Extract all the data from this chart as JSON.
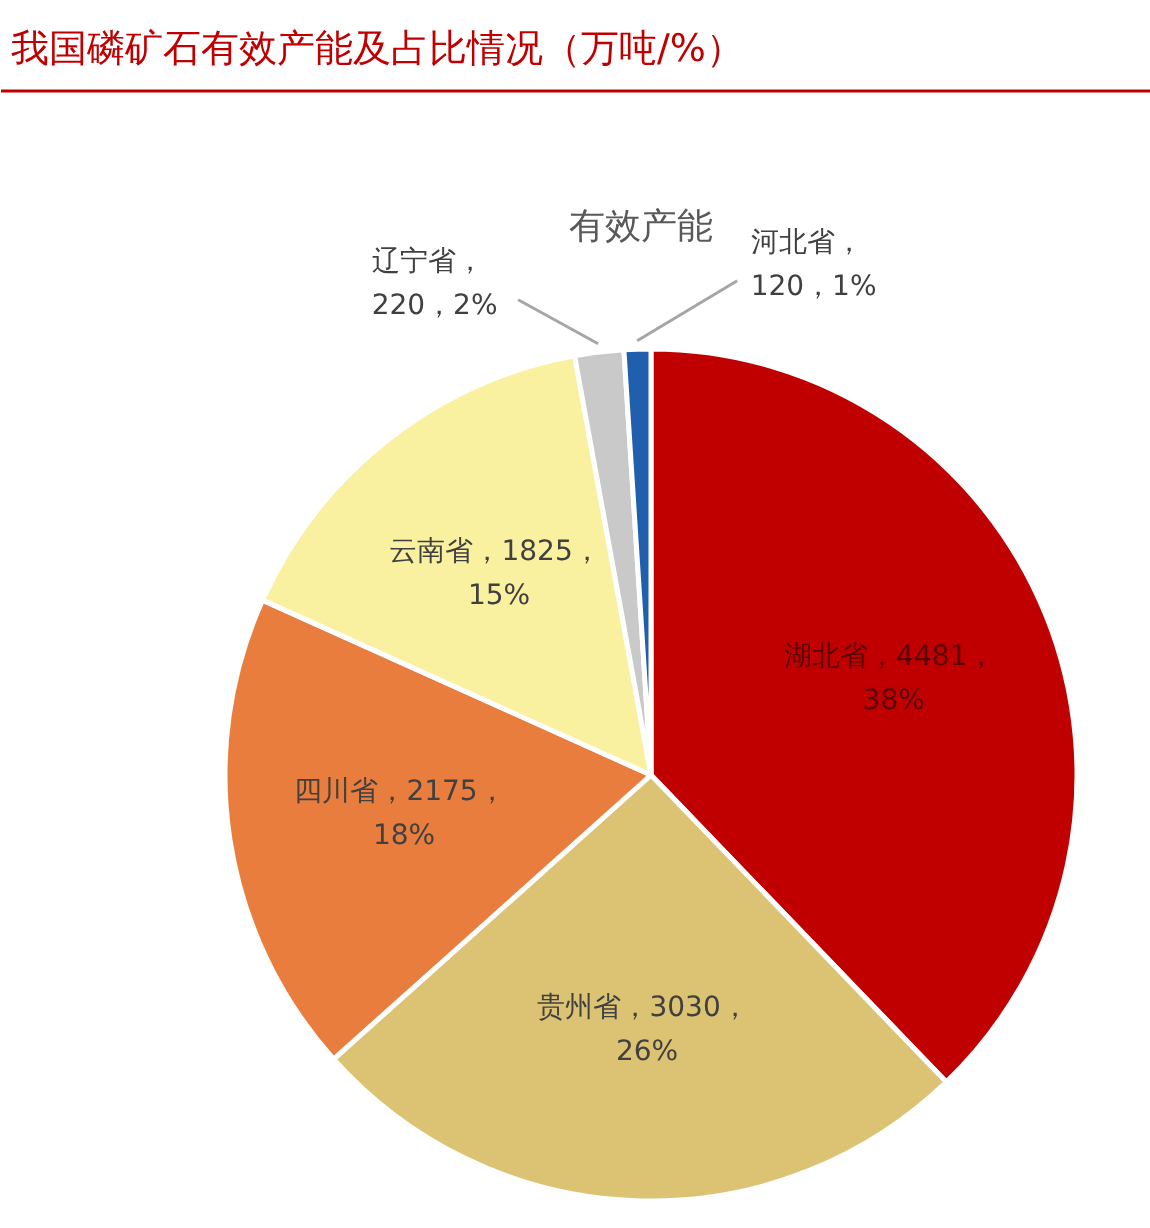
{
  "chart_data": {
    "type": "pie",
    "title": "我国磷矿石有效产能及占比情况（万吨/%）",
    "subtitle": "有效产能",
    "categories": [
      "湖北省",
      "贵州省",
      "四川省",
      "云南省",
      "辽宁省",
      "河北省"
    ],
    "values": [
      4481,
      3030,
      2175,
      1825,
      220,
      120
    ],
    "colors": [
      "#c00000",
      "#dcc374",
      "#e97d3e",
      "#f9f0a0",
      "#c9c9c9",
      "#1f5fad"
    ],
    "value_labels": [
      "，4481，\n38%",
      "，3030，\n26%",
      "，2175，\n18%",
      "，1825，\n15%",
      "，\n220，2%",
      "，\n120，1%"
    ]
  }
}
